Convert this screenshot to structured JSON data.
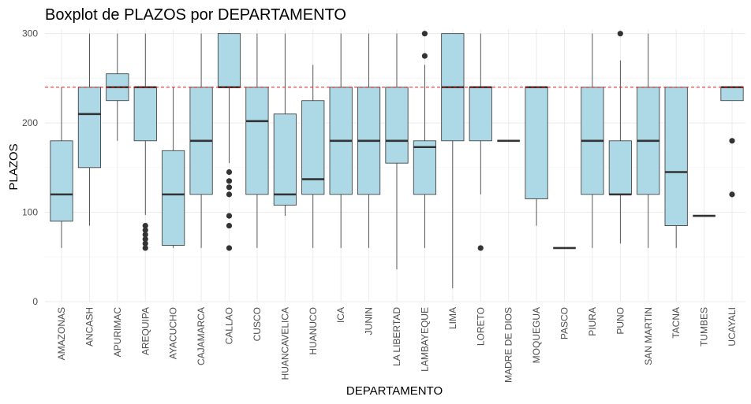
{
  "chart_data": {
    "type": "boxplot",
    "title": "Boxplot de PLAZOS por DEPARTAMENTO",
    "xlabel": "DEPARTAMENTO",
    "ylabel": "PLAZOS",
    "ylim": [
      0,
      305
    ],
    "yticks": [
      0,
      100,
      200,
      300
    ],
    "grid": true,
    "box_fill": "#add8e6",
    "box_stroke": "#333333",
    "reference_line": {
      "value": 240,
      "color": "#e31a1c",
      "style": "dashed"
    },
    "categories": [
      "AMAZONAS",
      "ANCASH",
      "APURIMAC",
      "AREQUIPA",
      "AYACUCHO",
      "CAJAMARCA",
      "CALLAO",
      "CUSCO",
      "HUANCAVELICA",
      "HUANUCO",
      "ICA",
      "JUNIN",
      "LA LIBERTAD",
      "LAMBAYEQUE",
      "LIMA",
      "LORETO",
      "MADRE DE DIOS",
      "MOQUEGUA",
      "PASCO",
      "PIURA",
      "PUNO",
      "SAN MARTIN",
      "TACNA",
      "TUMBES",
      "UCAYALI"
    ],
    "boxes": [
      {
        "min": 60,
        "q1": 90,
        "median": 120,
        "q3": 180,
        "max": 240,
        "outliers": []
      },
      {
        "min": 85,
        "q1": 150,
        "median": 210,
        "q3": 240,
        "max": 300,
        "outliers": []
      },
      {
        "min": 180,
        "q1": 225,
        "median": 240,
        "q3": 255,
        "max": 300,
        "outliers": []
      },
      {
        "min": 97,
        "q1": 180,
        "median": 240,
        "q3": 240,
        "max": 300,
        "outliers": [
          60,
          65,
          70,
          75,
          80,
          85
        ]
      },
      {
        "min": 60,
        "q1": 63,
        "median": 120,
        "q3": 169,
        "max": 240,
        "outliers": []
      },
      {
        "min": 60,
        "q1": 120,
        "median": 180,
        "q3": 240,
        "max": 300,
        "outliers": []
      },
      {
        "min": 155,
        "q1": 240,
        "median": 240,
        "q3": 300,
        "max": 300,
        "outliers": [
          60,
          85,
          96,
          120,
          128,
          135,
          145
        ]
      },
      {
        "min": 60,
        "q1": 120,
        "median": 202,
        "q3": 240,
        "max": 300,
        "outliers": []
      },
      {
        "min": 96,
        "q1": 108,
        "median": 120,
        "q3": 210,
        "max": 300,
        "outliers": []
      },
      {
        "min": 60,
        "q1": 120,
        "median": 137,
        "q3": 225,
        "max": 265,
        "outliers": []
      },
      {
        "min": 60,
        "q1": 120,
        "median": 180,
        "q3": 240,
        "max": 300,
        "outliers": []
      },
      {
        "min": 60,
        "q1": 120,
        "median": 180,
        "q3": 240,
        "max": 300,
        "outliers": []
      },
      {
        "min": 36,
        "q1": 155,
        "median": 180,
        "q3": 240,
        "max": 300,
        "outliers": []
      },
      {
        "min": 60,
        "q1": 120,
        "median": 173,
        "q3": 180,
        "max": 265,
        "outliers": [
          275,
          300
        ]
      },
      {
        "min": 15,
        "q1": 180,
        "median": 240,
        "q3": 300,
        "max": 300,
        "outliers": []
      },
      {
        "min": 120,
        "q1": 180,
        "median": 240,
        "q3": 240,
        "max": 300,
        "outliers": [
          60
        ]
      },
      {
        "min": 180,
        "q1": 180,
        "median": 180,
        "q3": 180,
        "max": 180,
        "outliers": []
      },
      {
        "min": 85,
        "q1": 115,
        "median": 240,
        "q3": 240,
        "max": 240,
        "outliers": []
      },
      {
        "min": 60,
        "q1": 60,
        "median": 60,
        "q3": 60,
        "max": 60,
        "outliers": []
      },
      {
        "min": 60,
        "q1": 120,
        "median": 180,
        "q3": 240,
        "max": 300,
        "outliers": []
      },
      {
        "min": 65,
        "q1": 120,
        "median": 120,
        "q3": 180,
        "max": 270,
        "outliers": [
          300
        ]
      },
      {
        "min": 60,
        "q1": 120,
        "median": 180,
        "q3": 240,
        "max": 300,
        "outliers": []
      },
      {
        "min": 60,
        "q1": 85,
        "median": 145,
        "q3": 240,
        "max": 240,
        "outliers": []
      },
      {
        "min": 96,
        "q1": 96,
        "median": 96,
        "q3": 96,
        "max": 96,
        "outliers": []
      },
      {
        "min": 225,
        "q1": 225,
        "median": 240,
        "q3": 240,
        "max": 240,
        "outliers": [
          120,
          180
        ]
      }
    ]
  }
}
